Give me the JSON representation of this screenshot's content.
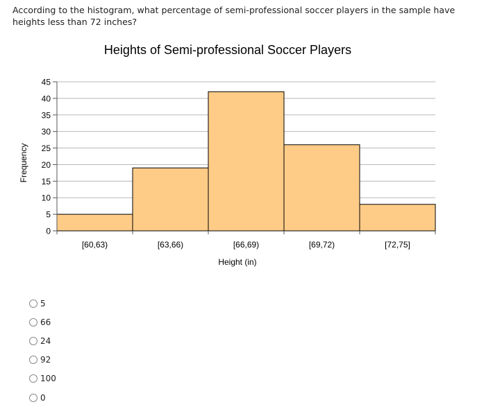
{
  "question": {
    "text": "According to the histogram, what percentage of semi-professional soccer players in the sample have heights less than 72 inches?"
  },
  "chart_data": {
    "type": "bar",
    "title": "Heights of Semi-professional Soccer Players",
    "xlabel": "Height (in)",
    "ylabel": "Frequency",
    "categories": [
      "[60,63)",
      "[63,66)",
      "[66,69)",
      "[69,72)",
      "[72,75]"
    ],
    "values": [
      5,
      19,
      42,
      26,
      8
    ],
    "ylim": [
      0,
      45
    ],
    "yticks": [
      0,
      5,
      10,
      15,
      20,
      25,
      30,
      35,
      40,
      45
    ],
    "grid": true,
    "bar_color": "#ffcc88",
    "bar_edge_color": "#000000"
  },
  "options": [
    {
      "label": "5"
    },
    {
      "label": "66"
    },
    {
      "label": "24"
    },
    {
      "label": "92"
    },
    {
      "label": "100"
    },
    {
      "label": "0"
    }
  ]
}
